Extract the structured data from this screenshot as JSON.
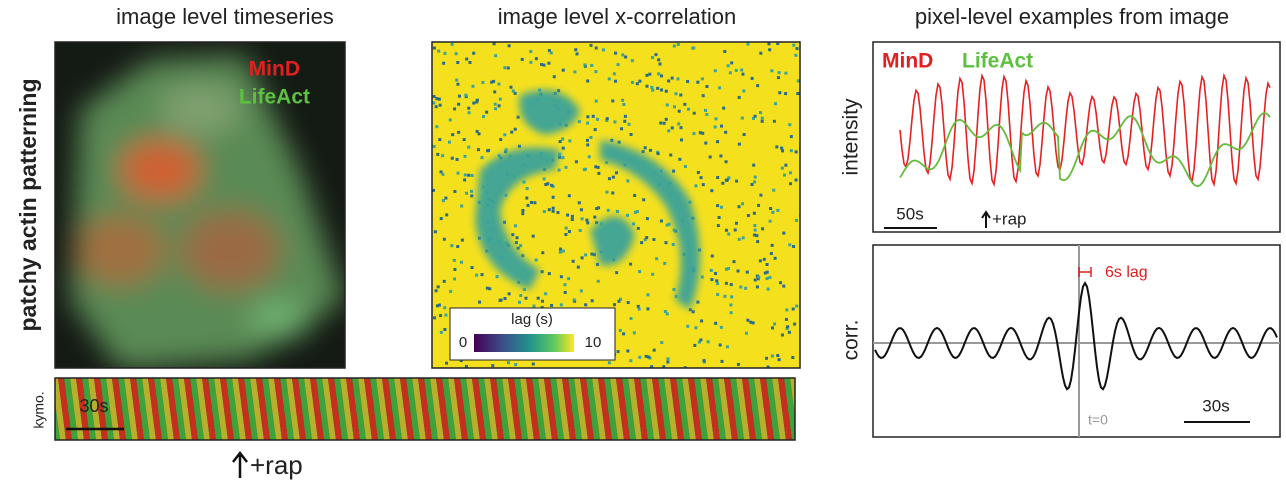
{
  "panels": {
    "timeseries": {
      "title": "image level timeseries",
      "row_label": "patchy actin patterning",
      "legend": [
        "MinD",
        "LifeAct"
      ]
    },
    "xcorr": {
      "title": "image level x-correlation",
      "colorbar": {
        "label": "lag (s)",
        "min_label": "0",
        "max_label": "10"
      }
    },
    "kymo": {
      "label": "kymo.",
      "scale": "30s",
      "annotation": "+rap"
    },
    "pixel": {
      "title": "pixel-level examples from image",
      "intensity": {
        "ylabel": "intensity",
        "legend": [
          "MinD",
          "LifeAct"
        ],
        "scale": "50s",
        "annotation": "+rap"
      },
      "corr": {
        "ylabel": "corr.",
        "lag": "6s lag",
        "t0": "t=0",
        "scale": "30s"
      }
    }
  }
}
